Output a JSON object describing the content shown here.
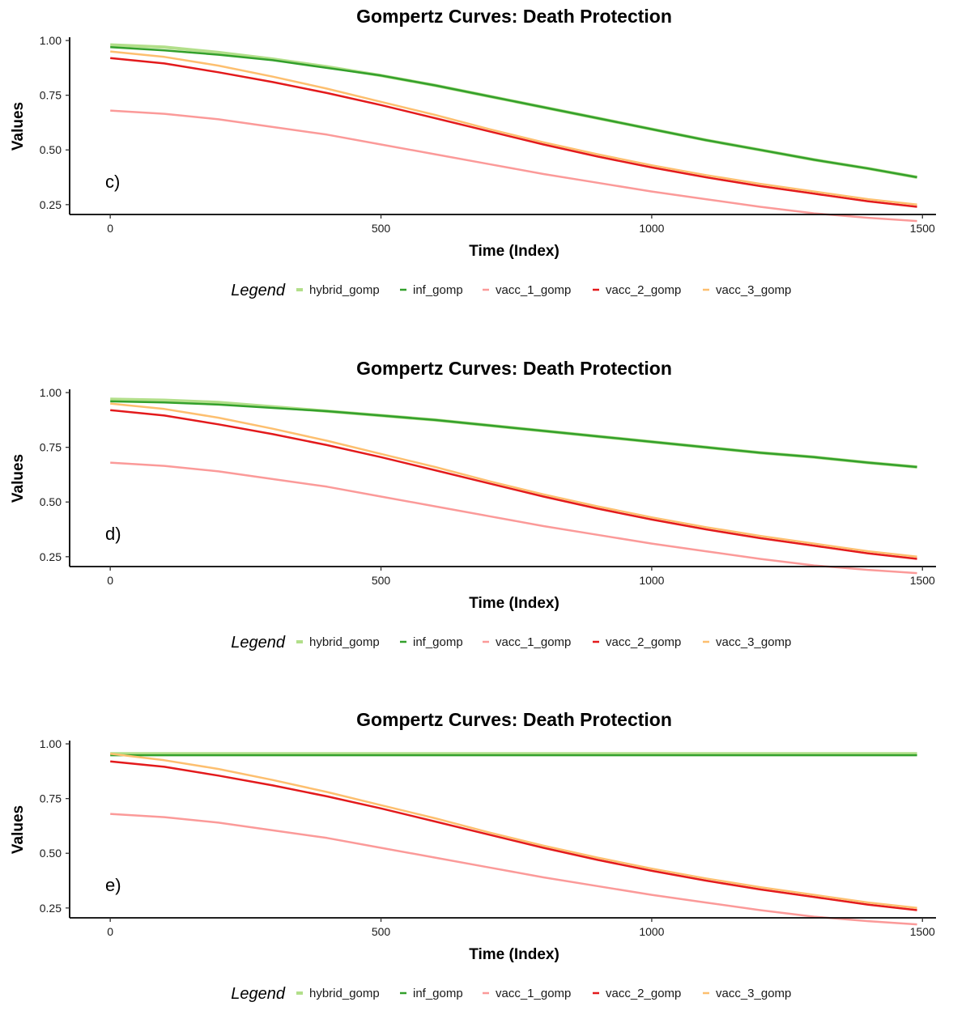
{
  "chart_data": [
    {
      "type": "line",
      "panel_label": "c)",
      "title": "Gompertz Curves: Death Protection",
      "xlabel": "Time (Index)",
      "ylabel": "Values",
      "xlim": [
        -75,
        1525
      ],
      "ylim": [
        0.205,
        1.015
      ],
      "xticks": [
        0,
        500,
        1000,
        1500
      ],
      "xtick_labels": [
        "0",
        "500",
        "1000",
        "1500"
      ],
      "yticks": [
        0.25,
        0.5,
        0.75,
        1.0
      ],
      "ytick_labels": [
        "0.25",
        "0.50",
        "0.75",
        "1.00"
      ],
      "grid": false,
      "legend_position": "bottom",
      "legend_title": "Legend",
      "x": [
        0,
        100,
        200,
        300,
        400,
        500,
        600,
        700,
        800,
        900,
        1000,
        1100,
        1200,
        1300,
        1400,
        1490
      ],
      "series": [
        {
          "name": "hybrid_gomp",
          "color": "#b2df8a",
          "line_width": 4,
          "values": [
            0.98,
            0.97,
            0.945,
            0.915,
            0.88,
            0.84,
            0.795,
            0.745,
            0.695,
            0.645,
            0.595,
            0.545,
            0.5,
            0.455,
            0.415,
            0.375
          ]
        },
        {
          "name": "inf_gomp",
          "color": "#33a02c",
          "line_width": 2.5,
          "values": [
            0.97,
            0.955,
            0.935,
            0.91,
            0.875,
            0.84,
            0.795,
            0.745,
            0.695,
            0.645,
            0.595,
            0.545,
            0.5,
            0.455,
            0.415,
            0.375
          ]
        },
        {
          "name": "vacc_1_gomp",
          "color": "#fb9a99",
          "line_width": 2.5,
          "values": [
            0.68,
            0.665,
            0.64,
            0.605,
            0.57,
            0.525,
            0.48,
            0.435,
            0.39,
            0.35,
            0.31,
            0.275,
            0.24,
            0.21,
            0.19,
            0.175
          ]
        },
        {
          "name": "vacc_2_gomp",
          "color": "#e31a1c",
          "line_width": 2.5,
          "values": [
            0.92,
            0.895,
            0.855,
            0.81,
            0.76,
            0.705,
            0.645,
            0.585,
            0.525,
            0.47,
            0.42,
            0.375,
            0.335,
            0.3,
            0.265,
            0.24
          ]
        },
        {
          "name": "vacc_3_gomp",
          "color": "#fdbf6f",
          "line_width": 2.5,
          "values": [
            0.95,
            0.925,
            0.885,
            0.835,
            0.78,
            0.72,
            0.66,
            0.595,
            0.535,
            0.48,
            0.43,
            0.385,
            0.345,
            0.31,
            0.275,
            0.25
          ]
        }
      ]
    },
    {
      "type": "line",
      "panel_label": "d)",
      "title": "Gompertz Curves: Death Protection",
      "xlabel": "Time (Index)",
      "ylabel": "Values",
      "xlim": [
        -75,
        1525
      ],
      "ylim": [
        0.205,
        1.015
      ],
      "xticks": [
        0,
        500,
        1000,
        1500
      ],
      "xtick_labels": [
        "0",
        "500",
        "1000",
        "1500"
      ],
      "yticks": [
        0.25,
        0.5,
        0.75,
        1.0
      ],
      "ytick_labels": [
        "0.25",
        "0.50",
        "0.75",
        "1.00"
      ],
      "grid": false,
      "legend_position": "bottom",
      "legend_title": "Legend",
      "x": [
        0,
        100,
        200,
        300,
        400,
        500,
        600,
        700,
        800,
        900,
        1000,
        1100,
        1200,
        1300,
        1400,
        1490
      ],
      "series": [
        {
          "name": "hybrid_gomp",
          "color": "#b2df8a",
          "line_width": 4,
          "values": [
            0.97,
            0.965,
            0.955,
            0.935,
            0.915,
            0.895,
            0.875,
            0.85,
            0.825,
            0.8,
            0.775,
            0.75,
            0.725,
            0.705,
            0.68,
            0.66
          ]
        },
        {
          "name": "inf_gomp",
          "color": "#33a02c",
          "line_width": 2.5,
          "values": [
            0.96,
            0.955,
            0.945,
            0.93,
            0.915,
            0.895,
            0.875,
            0.85,
            0.825,
            0.8,
            0.775,
            0.75,
            0.725,
            0.705,
            0.68,
            0.66
          ]
        },
        {
          "name": "vacc_1_gomp",
          "color": "#fb9a99",
          "line_width": 2.5,
          "values": [
            0.68,
            0.665,
            0.64,
            0.605,
            0.57,
            0.525,
            0.48,
            0.435,
            0.39,
            0.35,
            0.31,
            0.275,
            0.24,
            0.21,
            0.19,
            0.175
          ]
        },
        {
          "name": "vacc_2_gomp",
          "color": "#e31a1c",
          "line_width": 2.5,
          "values": [
            0.92,
            0.895,
            0.855,
            0.81,
            0.76,
            0.705,
            0.645,
            0.585,
            0.525,
            0.47,
            0.42,
            0.375,
            0.335,
            0.3,
            0.265,
            0.24
          ]
        },
        {
          "name": "vacc_3_gomp",
          "color": "#fdbf6f",
          "line_width": 2.5,
          "values": [
            0.95,
            0.925,
            0.885,
            0.835,
            0.78,
            0.72,
            0.66,
            0.595,
            0.535,
            0.48,
            0.43,
            0.385,
            0.345,
            0.31,
            0.275,
            0.25
          ]
        }
      ]
    },
    {
      "type": "line",
      "panel_label": "e)",
      "title": "Gompertz Curves: Death Protection",
      "xlabel": "Time (Index)",
      "ylabel": "Values",
      "xlim": [
        -75,
        1525
      ],
      "ylim": [
        0.205,
        1.015
      ],
      "xticks": [
        0,
        500,
        1000,
        1500
      ],
      "xtick_labels": [
        "0",
        "500",
        "1000",
        "1500"
      ],
      "yticks": [
        0.25,
        0.5,
        0.75,
        1.0
      ],
      "ytick_labels": [
        "0.25",
        "0.50",
        "0.75",
        "1.00"
      ],
      "grid": false,
      "legend_position": "bottom",
      "legend_title": "Legend",
      "x": [
        0,
        100,
        200,
        300,
        400,
        500,
        600,
        700,
        800,
        900,
        1000,
        1100,
        1200,
        1300,
        1400,
        1490
      ],
      "series": [
        {
          "name": "hybrid_gomp",
          "color": "#b2df8a",
          "line_width": 4,
          "values": [
            0.955,
            0.955,
            0.955,
            0.955,
            0.955,
            0.955,
            0.955,
            0.955,
            0.955,
            0.955,
            0.955,
            0.955,
            0.955,
            0.955,
            0.955,
            0.955
          ]
        },
        {
          "name": "inf_gomp",
          "color": "#33a02c",
          "line_width": 2.5,
          "values": [
            0.948,
            0.948,
            0.948,
            0.948,
            0.948,
            0.948,
            0.948,
            0.948,
            0.948,
            0.948,
            0.948,
            0.948,
            0.948,
            0.948,
            0.948,
            0.948
          ]
        },
        {
          "name": "vacc_1_gomp",
          "color": "#fb9a99",
          "line_width": 2.5,
          "values": [
            0.68,
            0.665,
            0.64,
            0.605,
            0.57,
            0.525,
            0.48,
            0.435,
            0.39,
            0.35,
            0.31,
            0.275,
            0.24,
            0.21,
            0.19,
            0.175
          ]
        },
        {
          "name": "vacc_2_gomp",
          "color": "#e31a1c",
          "line_width": 2.5,
          "values": [
            0.92,
            0.895,
            0.855,
            0.81,
            0.76,
            0.705,
            0.645,
            0.585,
            0.525,
            0.47,
            0.42,
            0.375,
            0.335,
            0.3,
            0.265,
            0.24
          ]
        },
        {
          "name": "vacc_3_gomp",
          "color": "#fdbf6f",
          "line_width": 2.5,
          "values": [
            0.955,
            0.925,
            0.885,
            0.835,
            0.78,
            0.72,
            0.66,
            0.595,
            0.535,
            0.48,
            0.43,
            0.385,
            0.345,
            0.31,
            0.275,
            0.25
          ]
        }
      ]
    }
  ]
}
